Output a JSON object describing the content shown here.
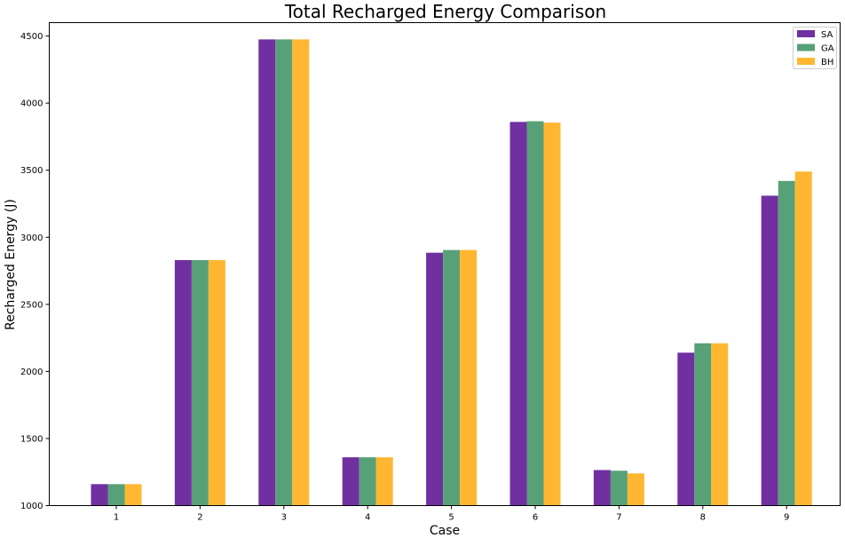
{
  "chart_data": {
    "type": "bar",
    "title": "Total Recharged Energy Comparison",
    "xlabel": "Case",
    "ylabel": "Recharged Energy (J)",
    "categories": [
      "1",
      "2",
      "3",
      "4",
      "5",
      "6",
      "7",
      "8",
      "9"
    ],
    "ylim": [
      1000,
      4600
    ],
    "yticks": [
      1000,
      1500,
      2000,
      2500,
      3000,
      3500,
      4000,
      4500
    ],
    "grid": false,
    "legend_position": "top-right",
    "series": [
      {
        "name": "SA",
        "color": "#7030a0",
        "values": [
          1160,
          2830,
          4475,
          1360,
          2885,
          3860,
          1265,
          2140,
          3310
        ]
      },
      {
        "name": "GA",
        "color": "#58a178",
        "values": [
          1160,
          2830,
          4475,
          1360,
          2905,
          3865,
          1260,
          2210,
          3420
        ]
      },
      {
        "name": "BH",
        "color": "#ffb732",
        "values": [
          1160,
          2830,
          4475,
          1360,
          2905,
          3855,
          1240,
          2210,
          3490
        ]
      }
    ]
  }
}
